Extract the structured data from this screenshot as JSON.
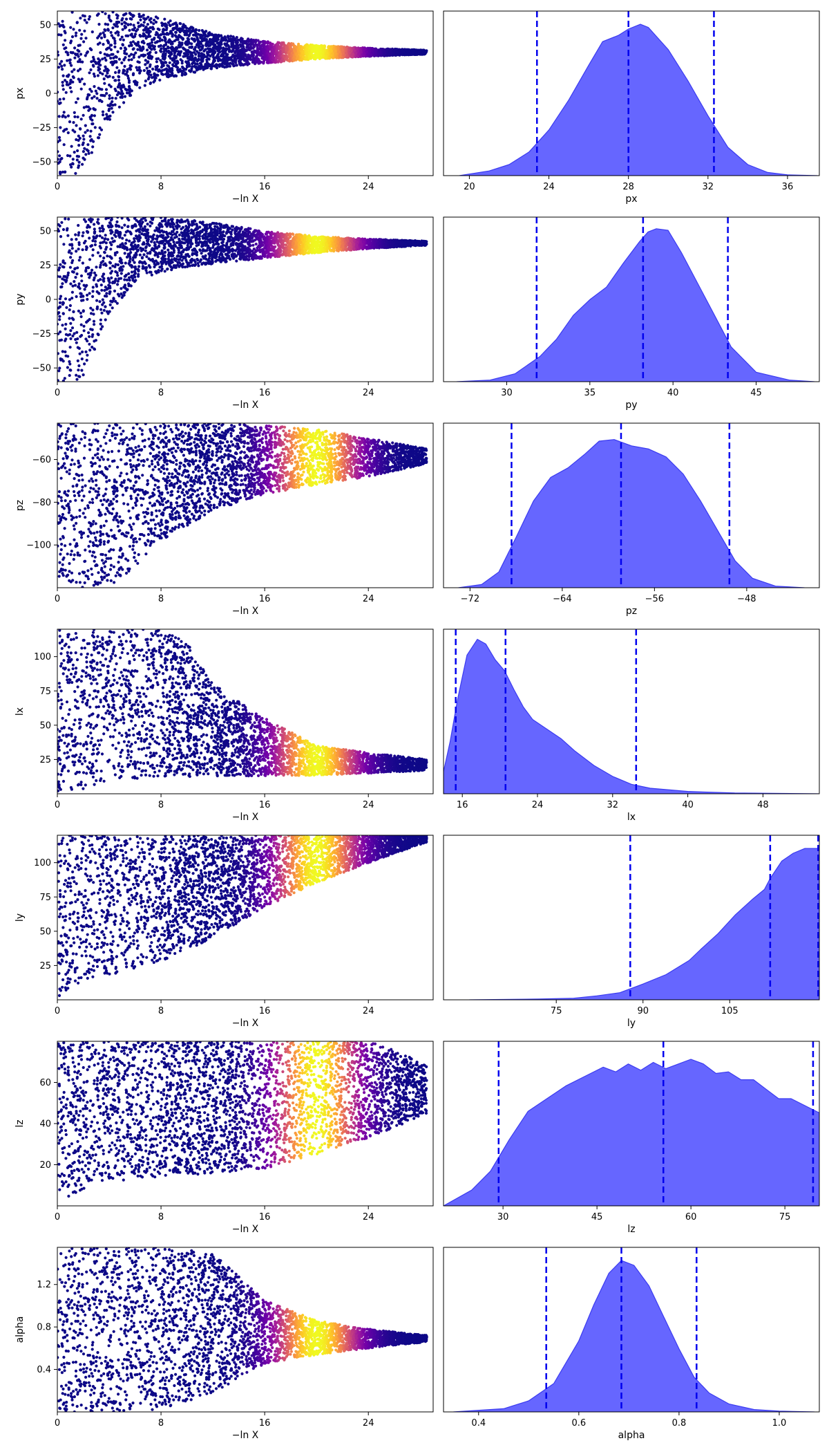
{
  "chart_data": [
    {
      "panel": "px",
      "type": "scatter",
      "xlabel": "−ln X",
      "ylabel": "px",
      "xlim": [
        0,
        29
      ],
      "ylim": [
        -60,
        60
      ],
      "xticks": [
        "0",
        "8",
        "16",
        "24"
      ],
      "yticks": [
        "-50",
        "-25",
        "0",
        "25",
        "50"
      ],
      "series": [
        {
          "x": [
            0,
            2,
            4,
            6,
            8,
            12,
            16,
            20,
            24,
            28.5
          ],
          "upper": [
            60,
            60,
            60,
            60,
            55,
            44,
            38,
            35,
            33,
            31.5
          ],
          "lower": [
            -60,
            -58,
            -20,
            2,
            10,
            18,
            22,
            25,
            27,
            28.5
          ],
          "hot_x": 20
        }
      ]
    },
    {
      "panel": "px",
      "type": "area",
      "xlabel": "px",
      "ylabel": "",
      "xlim": [
        18.7,
        37.6
      ],
      "xticks": [
        "20",
        "24",
        "28",
        "32",
        "36"
      ],
      "series": [
        {
          "x": [
            19.5,
            21,
            22,
            23,
            24,
            25,
            26,
            26.7,
            27.5,
            28,
            28.6,
            29,
            30,
            31,
            32,
            33,
            34,
            35,
            36,
            37.5
          ],
          "density": [
            0.0,
            0.03,
            0.07,
            0.15,
            0.29,
            0.48,
            0.7,
            0.85,
            0.89,
            0.93,
            0.96,
            0.94,
            0.8,
            0.6,
            0.38,
            0.18,
            0.07,
            0.02,
            0.005,
            0.0
          ]
        }
      ],
      "quantiles": [
        23.4,
        28.0,
        32.3
      ]
    },
    {
      "panel": "py",
      "type": "scatter",
      "xlabel": "−ln X",
      "ylabel": "py",
      "xlim": [
        0,
        29
      ],
      "ylim": [
        -60,
        60
      ],
      "xticks": [
        "0",
        "8",
        "16",
        "24"
      ],
      "yticks": [
        "-50",
        "-25",
        "0",
        "25",
        "50"
      ],
      "series": [
        {
          "x": [
            0,
            2,
            4,
            6,
            8,
            12,
            16,
            20,
            24,
            28.5
          ],
          "upper": [
            60,
            60,
            60,
            60,
            60,
            56,
            50,
            46,
            44,
            42.5
          ],
          "lower": [
            -60,
            -58,
            -10,
            12,
            20,
            26,
            30,
            34,
            37,
            39.5
          ],
          "hot_x": 20
        }
      ]
    },
    {
      "panel": "py",
      "type": "area",
      "xlabel": "py",
      "ylabel": "",
      "xlim": [
        26.2,
        48.8
      ],
      "xticks": [
        "30",
        "35",
        "40",
        "45"
      ],
      "series": [
        {
          "x": [
            27,
            29,
            30.5,
            32,
            33,
            34,
            35,
            36,
            37,
            38,
            38.5,
            39,
            39.7,
            40.5,
            41.5,
            42.5,
            43.5,
            45,
            47,
            48.5
          ],
          "density": [
            0.0,
            0.01,
            0.05,
            0.16,
            0.27,
            0.42,
            0.52,
            0.6,
            0.75,
            0.89,
            0.95,
            0.97,
            0.96,
            0.82,
            0.62,
            0.42,
            0.22,
            0.06,
            0.01,
            0.0
          ]
        }
      ],
      "quantiles": [
        31.8,
        38.2,
        43.3
      ]
    },
    {
      "panel": "pz",
      "type": "scatter",
      "xlabel": "−ln X",
      "ylabel": "pz",
      "xlim": [
        0,
        29
      ],
      "ylim": [
        -120,
        -43
      ],
      "xticks": [
        "0",
        "8",
        "16",
        "24"
      ],
      "yticks": [
        "-100",
        "-80",
        "-60"
      ],
      "series": [
        {
          "x": [
            0,
            2,
            4,
            6,
            8,
            12,
            16,
            20,
            24,
            28.5
          ],
          "upper": [
            -43,
            -43,
            -43,
            -43,
            -43,
            -43,
            -44,
            -46,
            -50,
            -55
          ],
          "lower": [
            -120,
            -120,
            -120,
            -110,
            -98,
            -84,
            -76,
            -72,
            -68,
            -62
          ],
          "hot_x": 20
        }
      ]
    },
    {
      "panel": "pz",
      "type": "area",
      "xlabel": "pz",
      "ylabel": "",
      "xlim": [
        -74.3,
        -41.7
      ],
      "xticks": [
        "-72",
        "-64",
        "-56",
        "-48"
      ],
      "series": [
        {
          "x": [
            -73,
            -71,
            -69.5,
            -68,
            -66.5,
            -65,
            -63.5,
            -62,
            -60.8,
            -59.5,
            -58,
            -56.5,
            -55,
            -53.5,
            -52,
            -50.5,
            -49,
            -47.5,
            -45.5,
            -43
          ],
          "density": [
            0.0,
            0.02,
            0.1,
            0.32,
            0.55,
            0.7,
            0.76,
            0.85,
            0.93,
            0.94,
            0.9,
            0.88,
            0.83,
            0.72,
            0.55,
            0.36,
            0.17,
            0.06,
            0.01,
            0.0
          ]
        }
      ],
      "quantiles": [
        -68.4,
        -58.9,
        -49.5
      ]
    },
    {
      "panel": "lx",
      "type": "scatter",
      "xlabel": "−ln X",
      "ylabel": "lx",
      "xlim": [
        0,
        29
      ],
      "ylim": [
        0,
        120
      ],
      "xticks": [
        "0",
        "8",
        "16",
        "24"
      ],
      "yticks": [
        "25",
        "50",
        "75",
        "100"
      ],
      "series": [
        {
          "x": [
            0,
            2,
            4,
            6,
            8,
            10,
            12,
            16,
            20,
            24,
            28.5
          ],
          "upper": [
            120,
            120,
            120,
            120,
            120,
            110,
            80,
            55,
            35,
            30,
            25
          ],
          "lower": [
            1,
            3,
            8,
            11,
            12,
            12.5,
            13,
            13,
            13.5,
            15,
            17
          ],
          "hot_x": 20
        }
      ]
    },
    {
      "panel": "lx",
      "type": "area",
      "xlabel": "lx",
      "ylabel": "",
      "xlim": [
        14,
        54
      ],
      "xticks": [
        "16",
        "24",
        "32",
        "40",
        "48"
      ],
      "series": [
        {
          "x": [
            14,
            14.7,
            15.5,
            16.5,
            17.6,
            18.5,
            19.5,
            20.5,
            21.5,
            22.5,
            23.5,
            25,
            26.5,
            28,
            30,
            32,
            34,
            36,
            40,
            45,
            53.9
          ],
          "density": [
            0.14,
            0.33,
            0.6,
            0.88,
            0.98,
            0.95,
            0.85,
            0.78,
            0.66,
            0.55,
            0.47,
            0.41,
            0.35,
            0.27,
            0.18,
            0.11,
            0.06,
            0.035,
            0.015,
            0.005,
            0.0
          ]
        }
      ],
      "quantiles": [
        15.3,
        20.6,
        34.5
      ]
    },
    {
      "panel": "ly",
      "type": "scatter",
      "xlabel": "−ln X",
      "ylabel": "ly",
      "xlim": [
        0,
        29
      ],
      "ylim": [
        0,
        120
      ],
      "xticks": [
        "0",
        "8",
        "16",
        "24"
      ],
      "yticks": [
        "25",
        "50",
        "75",
        "100"
      ],
      "series": [
        {
          "x": [
            0,
            2,
            4,
            8,
            12,
            16,
            20,
            24,
            28.5
          ],
          "upper": [
            120,
            120,
            120,
            120,
            120,
            120,
            120,
            120,
            120
          ],
          "lower": [
            2,
            12,
            18,
            28,
            45,
            68,
            85,
            100,
            115
          ],
          "hot_x": 20
        }
      ]
    },
    {
      "panel": "ly",
      "type": "area",
      "xlabel": "ly",
      "ylabel": "",
      "xlim": [
        55.5,
        120.5
      ],
      "xticks": [
        "75",
        "90",
        "105"
      ],
      "series": [
        {
          "x": [
            60,
            72,
            78,
            82,
            86,
            90,
            94,
            98,
            100,
            103,
            106,
            109,
            111,
            112,
            114,
            116,
            118,
            120.5
          ],
          "density": [
            0.0,
            0.005,
            0.01,
            0.025,
            0.045,
            0.1,
            0.16,
            0.25,
            0.32,
            0.42,
            0.54,
            0.64,
            0.7,
            0.77,
            0.88,
            0.93,
            0.96,
            0.96
          ]
        }
      ],
      "quantiles": [
        87.8,
        112.0,
        120.3
      ]
    },
    {
      "panel": "lz",
      "type": "scatter",
      "xlabel": "−ln X",
      "ylabel": "lz",
      "xlim": [
        0,
        29
      ],
      "ylim": [
        0,
        80
      ],
      "xticks": [
        "0",
        "8",
        "16",
        "24"
      ],
      "yticks": [
        "20",
        "40",
        "60"
      ],
      "series": [
        {
          "x": [
            0,
            2,
            4,
            8,
            12,
            16,
            20,
            24,
            26,
            28.5
          ],
          "upper": [
            80,
            80,
            80,
            80,
            80,
            80,
            80,
            80,
            76,
            68
          ],
          "lower": [
            1,
            8,
            12,
            14,
            16,
            18,
            25,
            33,
            38,
            45
          ],
          "hot_x": 20
        }
      ]
    },
    {
      "panel": "lz",
      "type": "area",
      "xlabel": "lz",
      "ylabel": "",
      "xlim": [
        20.5,
        80.5
      ],
      "xticks": [
        "30",
        "45",
        "60",
        "75"
      ],
      "series": [
        {
          "x": [
            20.5,
            25,
            28,
            31,
            34,
            37,
            40,
            43,
            46,
            48,
            50,
            52,
            54,
            56,
            58,
            60,
            62,
            64,
            66,
            68,
            70,
            72,
            74,
            76,
            78,
            80.5
          ],
          "density": [
            0.0,
            0.1,
            0.22,
            0.42,
            0.6,
            0.68,
            0.76,
            0.82,
            0.88,
            0.85,
            0.9,
            0.86,
            0.91,
            0.87,
            0.9,
            0.93,
            0.9,
            0.84,
            0.85,
            0.8,
            0.8,
            0.74,
            0.68,
            0.68,
            0.64,
            0.59
          ]
        }
      ],
      "quantiles": [
        29.3,
        55.6,
        79.5
      ]
    },
    {
      "panel": "alpha",
      "type": "scatter",
      "xlabel": "−ln X",
      "ylabel": "alpha",
      "xlim": [
        0,
        29
      ],
      "ylim": [
        0,
        1.55
      ],
      "xticks": [
        "0",
        "8",
        "16",
        "24"
      ],
      "yticks": [
        "0.4",
        "0.8",
        "1.2"
      ],
      "series": [
        {
          "x": [
            0,
            4,
            8,
            12,
            16,
            20,
            24,
            28.5
          ],
          "upper": [
            1.55,
            1.55,
            1.55,
            1.5,
            1.05,
            0.86,
            0.78,
            0.72
          ],
          "lower": [
            0,
            0,
            0.02,
            0.18,
            0.45,
            0.54,
            0.6,
            0.66
          ],
          "hot_x": 20
        }
      ]
    },
    {
      "panel": "alpha",
      "type": "area",
      "xlabel": "alpha",
      "ylabel": "",
      "xlim": [
        0.33,
        1.08
      ],
      "xticks": [
        "0.4",
        "0.6",
        "0.8",
        "1.0"
      ],
      "series": [
        {
          "x": [
            0.35,
            0.45,
            0.5,
            0.55,
            0.6,
            0.63,
            0.66,
            0.685,
            0.71,
            0.74,
            0.77,
            0.8,
            0.83,
            0.86,
            0.9,
            0.95,
            1.0,
            1.07
          ],
          "density": [
            0.0,
            0.02,
            0.07,
            0.18,
            0.45,
            0.68,
            0.88,
            0.96,
            0.93,
            0.8,
            0.6,
            0.4,
            0.22,
            0.12,
            0.05,
            0.015,
            0.005,
            0.0
          ]
        }
      ],
      "quantiles": [
        0.535,
        0.685,
        0.835
      ]
    }
  ]
}
